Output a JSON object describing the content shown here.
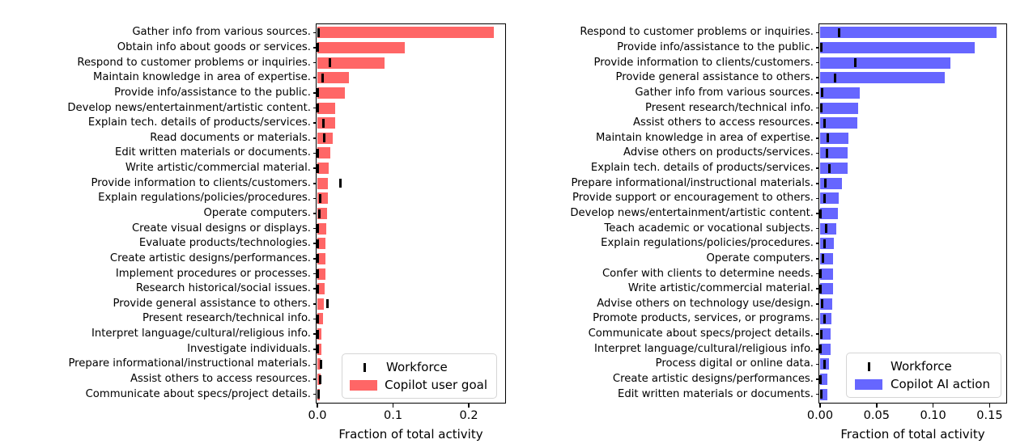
{
  "chart_data": [
    {
      "type": "bar",
      "orientation": "horizontal",
      "title": "",
      "xlabel": "Fraction of total activity",
      "ylabel": "",
      "xlim": [
        0,
        0.247
      ],
      "grid": false,
      "bar_color": "#ff6666",
      "workforce_marker_color": "#000000",
      "legend_position": "lower right",
      "legend": [
        {
          "label": "Workforce",
          "marker": "tick",
          "color": "#000000"
        },
        {
          "label": "Copilot user goal",
          "marker": "patch",
          "color": "#ff6666"
        }
      ],
      "xticks": [
        {
          "label": "0.0",
          "value": 0.0
        },
        {
          "label": "0.1",
          "value": 0.1
        },
        {
          "label": "0.2",
          "value": 0.2
        }
      ],
      "series_note": "bars = Copilot user goal fraction; black ticks = Workforce fraction",
      "rows": [
        {
          "label": "Gather info from various sources.",
          "value": 0.233,
          "workforce": 0.002
        },
        {
          "label": "Obtain info about goods or services.",
          "value": 0.116,
          "workforce": 0.0005
        },
        {
          "label": "Respond to customer problems or inquiries.",
          "value": 0.089,
          "workforce": 0.017
        },
        {
          "label": "Maintain knowledge in area of expertise.",
          "value": 0.042,
          "workforce": 0.0065
        },
        {
          "label": "Provide info/assistance to the public.",
          "value": 0.036,
          "workforce": 0.001
        },
        {
          "label": "Develop news/entertainment/artistic content.",
          "value": 0.024,
          "workforce": 0.0005
        },
        {
          "label": "Explain tech. details of products/services.",
          "value": 0.023,
          "workforce": 0.008
        },
        {
          "label": "Read documents or materials.",
          "value": 0.02,
          "workforce": 0.009
        },
        {
          "label": "Edit written materials or documents.",
          "value": 0.017,
          "workforce": 0.001
        },
        {
          "label": "Write artistic/commercial material.",
          "value": 0.015,
          "workforce": 0.0005
        },
        {
          "label": "Provide information to clients/customers.",
          "value": 0.014,
          "workforce": 0.031
        },
        {
          "label": "Explain regulations/policies/procedures.",
          "value": 0.0135,
          "workforce": 0.004
        },
        {
          "label": "Operate computers.",
          "value": 0.0125,
          "workforce": 0.0025
        },
        {
          "label": "Create visual designs or displays.",
          "value": 0.012,
          "workforce": 0.0005
        },
        {
          "label": "Evaluate products/technologies.",
          "value": 0.011,
          "workforce": 0.0005
        },
        {
          "label": "Create artistic designs/performances.",
          "value": 0.0107,
          "workforce": 0.0005
        },
        {
          "label": "Implement procedures or processes.",
          "value": 0.0105,
          "workforce": 0.0005
        },
        {
          "label": "Research historical/social issues.",
          "value": 0.0096,
          "workforce": 0.0005
        },
        {
          "label": "Provide general assistance to others.",
          "value": 0.0088,
          "workforce": 0.013
        },
        {
          "label": "Present research/technical info.",
          "value": 0.0072,
          "workforce": 0.001
        },
        {
          "label": "Interpret language/cultural/religious info.",
          "value": 0.0052,
          "workforce": 0.0005
        },
        {
          "label": "Investigate individuals.",
          "value": 0.005,
          "workforce": 0.0005
        },
        {
          "label": "Prepare informational/instructional materials.",
          "value": 0.0045,
          "workforce": 0.005
        },
        {
          "label": "Assist others to access resources.",
          "value": 0.0038,
          "workforce": 0.004
        },
        {
          "label": "Communicate about specs/project details.",
          "value": 0.0036,
          "workforce": 0.0012
        }
      ]
    },
    {
      "type": "bar",
      "orientation": "horizontal",
      "title": "",
      "xlabel": "Fraction of total activity",
      "ylabel": "",
      "xlim": [
        0,
        0.164
      ],
      "grid": false,
      "bar_color": "#6666ff",
      "workforce_marker_color": "#000000",
      "legend_position": "lower right",
      "legend": [
        {
          "label": "Workforce",
          "marker": "tick",
          "color": "#000000"
        },
        {
          "label": "Copilot AI action",
          "marker": "patch",
          "color": "#6666ff"
        }
      ],
      "xticks": [
        {
          "label": "0.00",
          "value": 0.0
        },
        {
          "label": "0.05",
          "value": 0.05
        },
        {
          "label": "0.10",
          "value": 0.1
        },
        {
          "label": "0.15",
          "value": 0.15
        }
      ],
      "series_note": "bars = Copilot AI action fraction; black ticks = Workforce fraction",
      "rows": [
        {
          "label": "Respond to customer problems or inquiries.",
          "value": 0.156,
          "workforce": 0.017
        },
        {
          "label": "Provide info/assistance to the public.",
          "value": 0.137,
          "workforce": 0.001
        },
        {
          "label": "Provide information to clients/customers.",
          "value": 0.115,
          "workforce": 0.031
        },
        {
          "label": "Provide general assistance to others.",
          "value": 0.11,
          "workforce": 0.013
        },
        {
          "label": "Gather info from various sources.",
          "value": 0.035,
          "workforce": 0.002
        },
        {
          "label": "Present research/technical info.",
          "value": 0.034,
          "workforce": 0.001
        },
        {
          "label": "Assist others to access resources.",
          "value": 0.033,
          "workforce": 0.004
        },
        {
          "label": "Maintain knowledge in area of expertise.",
          "value": 0.025,
          "workforce": 0.0065
        },
        {
          "label": "Advise others on products/services.",
          "value": 0.0245,
          "workforce": 0.0064
        },
        {
          "label": "Explain tech. details of products/services.",
          "value": 0.024,
          "workforce": 0.008
        },
        {
          "label": "Prepare informational/instructional materials.",
          "value": 0.019,
          "workforce": 0.005
        },
        {
          "label": "Provide support or encouragement to others.",
          "value": 0.0165,
          "workforce": 0.004
        },
        {
          "label": "Develop news/entertainment/artistic content.",
          "value": 0.0155,
          "workforce": 0.0005
        },
        {
          "label": "Teach academic or vocational subjects.",
          "value": 0.0145,
          "workforce": 0.0057
        },
        {
          "label": "Explain regulations/policies/procedures.",
          "value": 0.0125,
          "workforce": 0.004
        },
        {
          "label": "Operate computers.",
          "value": 0.0117,
          "workforce": 0.0025
        },
        {
          "label": "Confer with clients to determine needs.",
          "value": 0.0113,
          "workforce": 0.0005
        },
        {
          "label": "Write artistic/commercial material.",
          "value": 0.0112,
          "workforce": 0.0005
        },
        {
          "label": "Advise others on technology use/design.",
          "value": 0.0111,
          "workforce": 0.0017
        },
        {
          "label": "Promote products, services, or programs.",
          "value": 0.01,
          "workforce": 0.004
        },
        {
          "label": "Communicate about specs/project details.",
          "value": 0.0096,
          "workforce": 0.0012
        },
        {
          "label": "Interpret language/cultural/religious info.",
          "value": 0.0093,
          "workforce": 0.0005
        },
        {
          "label": "Process digital or online data.",
          "value": 0.008,
          "workforce": 0.004
        },
        {
          "label": "Create artistic designs/performances.",
          "value": 0.0065,
          "workforce": 0.0005
        },
        {
          "label": "Edit written materials or documents.",
          "value": 0.0062,
          "workforce": 0.001
        }
      ]
    }
  ]
}
